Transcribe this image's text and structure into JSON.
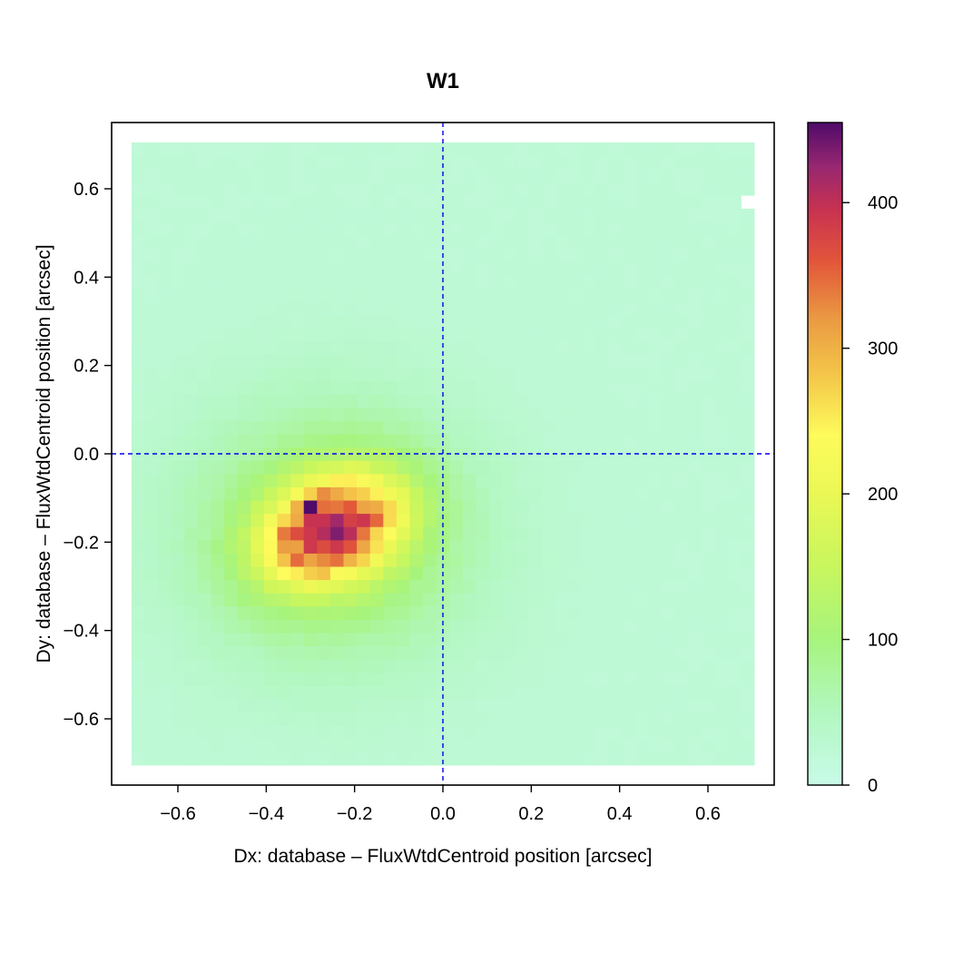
{
  "chart_data": {
    "type": "heatmap",
    "title": "W1",
    "xlabel": "Dx: database – FluxWtdCentroid position [arcsec]",
    "ylabel": "Dy: database – FluxWtdCentroid position [arcsec]",
    "xlim": [
      -0.75,
      0.75
    ],
    "ylim": [
      -0.75,
      0.75
    ],
    "x_ticks": [
      -0.6,
      -0.4,
      -0.2,
      0.0,
      0.2,
      0.4,
      0.6
    ],
    "y_ticks": [
      -0.6,
      -0.4,
      -0.2,
      0.0,
      0.2,
      0.4,
      0.6
    ],
    "x_tick_labels": [
      "−0.6",
      "−0.4",
      "−0.2",
      "0.0",
      "0.2",
      "0.4",
      "0.6"
    ],
    "y_tick_labels": [
      "−0.6",
      "−0.4",
      "−0.2",
      "0.0",
      "0.2",
      "0.4",
      "0.6"
    ],
    "data_extent": {
      "x": [
        -0.705,
        0.705
      ],
      "y": [
        -0.705,
        0.705
      ]
    },
    "bin_width": 0.03,
    "reference_lines": {
      "x": 0.0,
      "y": 0.0,
      "style": "dashed",
      "color": "#0000ee"
    },
    "colorbar": {
      "range": [
        0,
        455
      ],
      "ticks": [
        0,
        100,
        200,
        300,
        400
      ],
      "tick_labels": [
        "0",
        "100",
        "200",
        "300",
        "400"
      ],
      "colormap": [
        {
          "value": 0,
          "color": "#c8fbe8"
        },
        {
          "value": 50,
          "color": "#b2f7c0"
        },
        {
          "value": 100,
          "color": "#a7f47d"
        },
        {
          "value": 150,
          "color": "#c8f65e"
        },
        {
          "value": 200,
          "color": "#eaf855"
        },
        {
          "value": 240,
          "color": "#fefb5c"
        },
        {
          "value": 280,
          "color": "#f4c84a"
        },
        {
          "value": 320,
          "color": "#ea9a42"
        },
        {
          "value": 360,
          "color": "#e2553a"
        },
        {
          "value": 395,
          "color": "#c83251"
        },
        {
          "value": 425,
          "color": "#972770"
        },
        {
          "value": 455,
          "color": "#4f0a6a"
        }
      ]
    },
    "components": [
      {
        "kind": "background",
        "amplitude": 22
      },
      {
        "kind": "gaussian",
        "center_x": -0.25,
        "center_y": -0.18,
        "sigma_x": 0.22,
        "sigma_y": 0.2,
        "amplitude": 105
      },
      {
        "kind": "gaussian",
        "center_x": -0.25,
        "center_y": -0.17,
        "sigma_x": 0.11,
        "sigma_y": 0.075,
        "rotation_deg": 25,
        "amplitude": 330
      }
    ],
    "hotspots": [
      {
        "x": -0.19,
        "y": -0.15,
        "value": 450
      },
      {
        "x": -0.31,
        "y": -0.13,
        "value": 440
      },
      {
        "x": -0.34,
        "y": -0.19,
        "value": 420
      },
      {
        "x": -0.22,
        "y": -0.19,
        "value": 425
      },
      {
        "x": -0.25,
        "y": -0.16,
        "value": 415
      }
    ],
    "empty_bins": [
      {
        "x": 0.69,
        "y": 0.57
      }
    ]
  }
}
